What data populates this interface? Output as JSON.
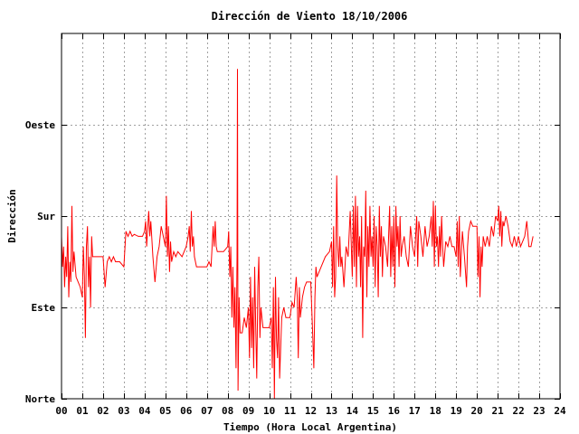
{
  "chart_data": {
    "type": "line",
    "title": "Dirección de Viento 18/10/2006",
    "xlabel": "Tiempo (Hora Local Argentina)",
    "ylabel": "Dirección",
    "xlim": [
      0,
      24
    ],
    "ylim": [
      0,
      360
    ],
    "grid": true,
    "line_color": "#ff0000",
    "x_ticks": [
      {
        "value": 0,
        "label": "00"
      },
      {
        "value": 1,
        "label": "01"
      },
      {
        "value": 2,
        "label": "02"
      },
      {
        "value": 3,
        "label": "03"
      },
      {
        "value": 4,
        "label": "04"
      },
      {
        "value": 5,
        "label": "05"
      },
      {
        "value": 6,
        "label": "06"
      },
      {
        "value": 7,
        "label": "07"
      },
      {
        "value": 8,
        "label": "08"
      },
      {
        "value": 9,
        "label": "09"
      },
      {
        "value": 10,
        "label": "10"
      },
      {
        "value": 11,
        "label": "11"
      },
      {
        "value": 12,
        "label": "12"
      },
      {
        "value": 13,
        "label": "13"
      },
      {
        "value": 14,
        "label": "14"
      },
      {
        "value": 15,
        "label": "15"
      },
      {
        "value": 16,
        "label": "16"
      },
      {
        "value": 17,
        "label": "17"
      },
      {
        "value": 18,
        "label": "18"
      },
      {
        "value": 19,
        "label": "19"
      },
      {
        "value": 20,
        "label": "20"
      },
      {
        "value": 21,
        "label": "21"
      },
      {
        "value": 22,
        "label": "22"
      },
      {
        "value": 23,
        "label": "23"
      },
      {
        "value": 24,
        "label": "24"
      }
    ],
    "y_ticks": [
      {
        "value": 0,
        "label": "Norte"
      },
      {
        "value": 90,
        "label": "Este"
      },
      {
        "value": 180,
        "label": "Sur"
      },
      {
        "value": 270,
        "label": "Oeste"
      }
    ],
    "series": [
      {
        "values": [
          [
            0.0,
            160
          ],
          [
            0.05,
            130
          ],
          [
            0.1,
            150
          ],
          [
            0.15,
            110
          ],
          [
            0.2,
            140
          ],
          [
            0.25,
            120
          ],
          [
            0.3,
            170
          ],
          [
            0.35,
            100
          ],
          [
            0.4,
            135
          ],
          [
            0.45,
            115
          ],
          [
            0.5,
            190
          ],
          [
            0.55,
            125
          ],
          [
            0.6,
            145
          ],
          [
            0.7,
            120
          ],
          [
            0.8,
            115
          ],
          [
            0.9,
            110
          ],
          [
            1.0,
            100
          ],
          [
            1.05,
            150
          ],
          [
            1.1,
            120
          ],
          [
            1.15,
            60
          ],
          [
            1.2,
            150
          ],
          [
            1.25,
            170
          ],
          [
            1.3,
            110
          ],
          [
            1.35,
            140
          ],
          [
            1.4,
            90
          ],
          [
            1.45,
            160
          ],
          [
            1.5,
            140
          ],
          [
            1.6,
            140
          ],
          [
            1.8,
            140
          ],
          [
            2.0,
            140
          ],
          [
            2.1,
            110
          ],
          [
            2.2,
            135
          ],
          [
            2.3,
            140
          ],
          [
            2.4,
            135
          ],
          [
            2.5,
            140
          ],
          [
            2.6,
            135
          ],
          [
            2.8,
            135
          ],
          [
            3.0,
            130
          ],
          [
            3.1,
            165
          ],
          [
            3.2,
            160
          ],
          [
            3.3,
            165
          ],
          [
            3.4,
            160
          ],
          [
            3.5,
            162
          ],
          [
            3.7,
            160
          ],
          [
            3.9,
            160
          ],
          [
            4.0,
            165
          ],
          [
            4.05,
            175
          ],
          [
            4.1,
            150
          ],
          [
            4.2,
            185
          ],
          [
            4.25,
            160
          ],
          [
            4.3,
            175
          ],
          [
            4.4,
            140
          ],
          [
            4.5,
            115
          ],
          [
            4.6,
            140
          ],
          [
            4.7,
            150
          ],
          [
            4.8,
            170
          ],
          [
            4.9,
            160
          ],
          [
            5.0,
            150
          ],
          [
            5.05,
            200
          ],
          [
            5.1,
            140
          ],
          [
            5.15,
            170
          ],
          [
            5.2,
            125
          ],
          [
            5.25,
            155
          ],
          [
            5.3,
            135
          ],
          [
            5.4,
            145
          ],
          [
            5.5,
            140
          ],
          [
            5.6,
            145
          ],
          [
            5.8,
            140
          ],
          [
            6.0,
            150
          ],
          [
            6.1,
            160
          ],
          [
            6.15,
            170
          ],
          [
            6.2,
            145
          ],
          [
            6.25,
            185
          ],
          [
            6.3,
            150
          ],
          [
            6.35,
            160
          ],
          [
            6.4,
            140
          ],
          [
            6.5,
            130
          ],
          [
            6.6,
            130
          ],
          [
            6.8,
            130
          ],
          [
            7.0,
            130
          ],
          [
            7.1,
            135
          ],
          [
            7.2,
            130
          ],
          [
            7.3,
            170
          ],
          [
            7.35,
            150
          ],
          [
            7.4,
            175
          ],
          [
            7.45,
            150
          ],
          [
            7.5,
            145
          ],
          [
            7.6,
            145
          ],
          [
            7.8,
            145
          ],
          [
            8.0,
            150
          ],
          [
            8.05,
            165
          ],
          [
            8.1,
            120
          ],
          [
            8.15,
            150
          ],
          [
            8.2,
            80
          ],
          [
            8.25,
            130
          ],
          [
            8.3,
            70
          ],
          [
            8.35,
            110
          ],
          [
            8.4,
            30
          ],
          [
            8.45,
            140
          ],
          [
            8.47,
            325
          ],
          [
            8.5,
            8
          ],
          [
            8.55,
            100
          ],
          [
            8.6,
            65
          ],
          [
            8.7,
            65
          ],
          [
            8.8,
            80
          ],
          [
            8.9,
            70
          ],
          [
            9.0,
            90
          ],
          [
            9.05,
            40
          ],
          [
            9.1,
            120
          ],
          [
            9.15,
            50
          ],
          [
            9.2,
            100
          ],
          [
            9.25,
            30
          ],
          [
            9.3,
            130
          ],
          [
            9.35,
            70
          ],
          [
            9.4,
            20
          ],
          [
            9.45,
            110
          ],
          [
            9.5,
            140
          ],
          [
            9.55,
            60
          ],
          [
            9.6,
            90
          ],
          [
            9.7,
            70
          ],
          [
            9.8,
            70
          ],
          [
            9.9,
            70
          ],
          [
            10.0,
            70
          ],
          [
            10.1,
            80
          ],
          [
            10.15,
            30
          ],
          [
            10.2,
            110
          ],
          [
            10.25,
            0
          ],
          [
            10.3,
            120
          ],
          [
            10.35,
            60
          ],
          [
            10.4,
            40
          ],
          [
            10.45,
            100
          ],
          [
            10.5,
            20
          ],
          [
            10.6,
            80
          ],
          [
            10.7,
            90
          ],
          [
            10.8,
            80
          ],
          [
            11.0,
            80
          ],
          [
            11.1,
            95
          ],
          [
            11.2,
            90
          ],
          [
            11.3,
            120
          ],
          [
            11.35,
            100
          ],
          [
            11.4,
            40
          ],
          [
            11.45,
            110
          ],
          [
            11.5,
            80
          ],
          [
            11.6,
            100
          ],
          [
            11.7,
            110
          ],
          [
            11.8,
            115
          ],
          [
            12.0,
            115
          ],
          [
            12.1,
            60
          ],
          [
            12.15,
            30
          ],
          [
            12.2,
            100
          ],
          [
            12.25,
            130
          ],
          [
            12.3,
            120
          ],
          [
            12.5,
            130
          ],
          [
            12.7,
            140
          ],
          [
            12.9,
            145
          ],
          [
            13.0,
            155
          ],
          [
            13.05,
            110
          ],
          [
            13.1,
            170
          ],
          [
            13.15,
            100
          ],
          [
            13.2,
            120
          ],
          [
            13.25,
            220
          ],
          [
            13.3,
            150
          ],
          [
            13.35,
            130
          ],
          [
            13.4,
            160
          ],
          [
            13.45,
            130
          ],
          [
            13.5,
            140
          ],
          [
            13.6,
            110
          ],
          [
            13.7,
            150
          ],
          [
            13.8,
            140
          ],
          [
            13.9,
            185
          ],
          [
            14.0,
            120
          ],
          [
            14.05,
            190
          ],
          [
            14.1,
            130
          ],
          [
            14.15,
            200
          ],
          [
            14.2,
            110
          ],
          [
            14.25,
            190
          ],
          [
            14.3,
            140
          ],
          [
            14.35,
            160
          ],
          [
            14.4,
            110
          ],
          [
            14.45,
            180
          ],
          [
            14.5,
            60
          ],
          [
            14.55,
            150
          ],
          [
            14.6,
            140
          ],
          [
            14.65,
            205
          ],
          [
            14.7,
            100
          ],
          [
            14.75,
            170
          ],
          [
            14.8,
            130
          ],
          [
            14.85,
            190
          ],
          [
            14.9,
            140
          ],
          [
            14.95,
            160
          ],
          [
            15.0,
            130
          ],
          [
            15.05,
            180
          ],
          [
            15.1,
            110
          ],
          [
            15.15,
            170
          ],
          [
            15.2,
            150
          ],
          [
            15.25,
            100
          ],
          [
            15.3,
            190
          ],
          [
            15.35,
            140
          ],
          [
            15.4,
            170
          ],
          [
            15.45,
            120
          ],
          [
            15.5,
            160
          ],
          [
            15.6,
            150
          ],
          [
            15.7,
            130
          ],
          [
            15.8,
            190
          ],
          [
            15.85,
            120
          ],
          [
            15.9,
            170
          ],
          [
            15.95,
            130
          ],
          [
            16.0,
            180
          ],
          [
            16.05,
            110
          ],
          [
            16.1,
            190
          ],
          [
            16.15,
            150
          ],
          [
            16.2,
            170
          ],
          [
            16.25,
            130
          ],
          [
            16.3,
            180
          ],
          [
            16.35,
            140
          ],
          [
            16.4,
            150
          ],
          [
            16.5,
            160
          ],
          [
            16.6,
            140
          ],
          [
            16.7,
            130
          ],
          [
            16.8,
            170
          ],
          [
            16.9,
            150
          ],
          [
            17.0,
            140
          ],
          [
            17.05,
            160
          ],
          [
            17.1,
            180
          ],
          [
            17.15,
            130
          ],
          [
            17.2,
            175
          ],
          [
            17.3,
            160
          ],
          [
            17.4,
            140
          ],
          [
            17.5,
            170
          ],
          [
            17.6,
            150
          ],
          [
            17.7,
            160
          ],
          [
            17.8,
            180
          ],
          [
            17.85,
            150
          ],
          [
            17.9,
            195
          ],
          [
            17.95,
            130
          ],
          [
            18.0,
            190
          ],
          [
            18.05,
            150
          ],
          [
            18.1,
            160
          ],
          [
            18.15,
            130
          ],
          [
            18.2,
            170
          ],
          [
            18.25,
            140
          ],
          [
            18.3,
            180
          ],
          [
            18.35,
            150
          ],
          [
            18.4,
            130
          ],
          [
            18.5,
            155
          ],
          [
            18.6,
            150
          ],
          [
            18.7,
            160
          ],
          [
            18.8,
            150
          ],
          [
            18.9,
            150
          ],
          [
            19.0,
            140
          ],
          [
            19.05,
            175
          ],
          [
            19.1,
            130
          ],
          [
            19.15,
            180
          ],
          [
            19.2,
            120
          ],
          [
            19.3,
            165
          ],
          [
            19.4,
            140
          ],
          [
            19.5,
            110
          ],
          [
            19.55,
            150
          ],
          [
            19.6,
            165
          ],
          [
            19.7,
            175
          ],
          [
            19.8,
            170
          ],
          [
            20.0,
            170
          ],
          [
            20.05,
            120
          ],
          [
            20.1,
            160
          ],
          [
            20.15,
            100
          ],
          [
            20.2,
            150
          ],
          [
            20.25,
            130
          ],
          [
            20.3,
            160
          ],
          [
            20.4,
            150
          ],
          [
            20.5,
            160
          ],
          [
            20.6,
            150
          ],
          [
            20.7,
            170
          ],
          [
            20.8,
            160
          ],
          [
            20.9,
            180
          ],
          [
            21.0,
            175
          ],
          [
            21.05,
            190
          ],
          [
            21.1,
            160
          ],
          [
            21.15,
            185
          ],
          [
            21.2,
            150
          ],
          [
            21.25,
            175
          ],
          [
            21.3,
            170
          ],
          [
            21.4,
            180
          ],
          [
            21.5,
            170
          ],
          [
            21.6,
            155
          ],
          [
            21.7,
            150
          ],
          [
            21.8,
            160
          ],
          [
            21.9,
            150
          ],
          [
            22.0,
            160
          ],
          [
            22.1,
            150
          ],
          [
            22.2,
            155
          ],
          [
            22.3,
            160
          ],
          [
            22.4,
            175
          ],
          [
            22.5,
            150
          ],
          [
            22.6,
            150
          ],
          [
            22.7,
            160
          ]
        ]
      }
    ]
  }
}
